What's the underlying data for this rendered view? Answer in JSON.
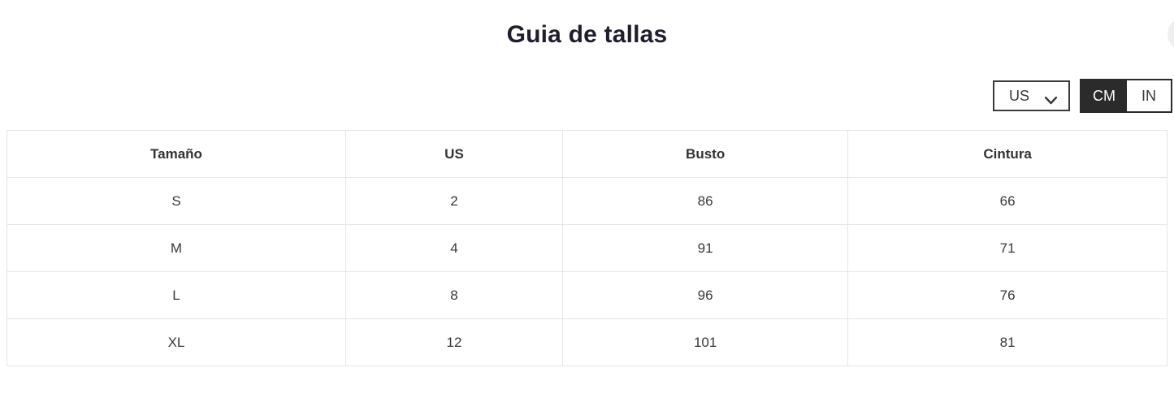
{
  "modal": {
    "title": "Guia de tallas",
    "close_label": "×"
  },
  "controls": {
    "region_select": {
      "selected_option": "US"
    },
    "unit_toggle": {
      "options": [
        {
          "label": "CM",
          "selected": true
        },
        {
          "label": "IN",
          "selected": false
        }
      ]
    }
  },
  "table": {
    "headers": [
      "Tamaño",
      "US",
      "Busto",
      "Cintura"
    ],
    "rows": [
      [
        "S",
        "2",
        "86",
        "66"
      ],
      [
        "M",
        "4",
        "91",
        "71"
      ],
      [
        "L",
        "8",
        "96",
        "76"
      ],
      [
        "XL",
        "12",
        "101",
        "81"
      ]
    ]
  },
  "colors": {
    "accent_dark": "#2b2b2b",
    "table_border": "#e6e6e6",
    "title_text": "#1e1e2d",
    "body_text": "#3a3a3a",
    "background": "#ffffff"
  }
}
